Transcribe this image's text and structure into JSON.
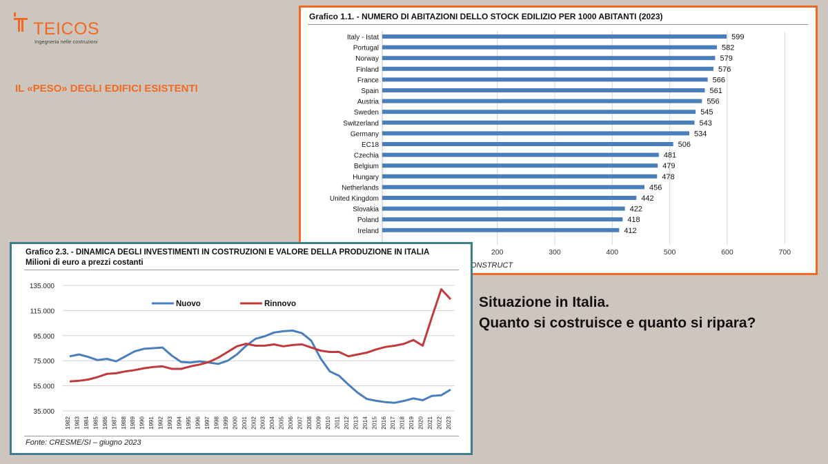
{
  "logo": {
    "name": "TEICOS",
    "tagline": "Ingegneria nelle costruzioni"
  },
  "heading": "IL «PESO» DEGLI EDIFICI ESISTENTI",
  "question": {
    "line1": "Situazione in Italia.",
    "line2": "Quanto si costruisce e quanto si ripara?"
  },
  "colors": {
    "accent": "#f06a23",
    "teal_border": "#3e7e8c",
    "bar": "#4a7ebb",
    "nuovo": "#4a7ebb",
    "rinnovo": "#c0393b"
  },
  "chart1": {
    "title": "Grafico 1.1. - NUMERO DI ABITAZIONI DELLO STOCK EDILIZIO PER 1000 ABITANTI (2023)",
    "source": "ONSTRUCT"
  },
  "chart2": {
    "title": "Grafico 2.3. - DINAMICA DEGLI INVESTIMENTI IN COSTRUZIONI E VALORE DELLA PRODUZIONE IN ITALIA",
    "subtitle": "Milioni di euro a prezzi costanti",
    "source": "Fonte: CRESME/SI – giugno 2023"
  },
  "chart_data": [
    {
      "type": "bar",
      "orientation": "horizontal",
      "title": "Grafico 1.1. - NUMERO DI ABITAZIONI DELLO STOCK EDILIZIO PER 1000 ABITANTI (2023)",
      "categories": [
        "Italy - Istat",
        "Portugal",
        "Norway",
        "Finland",
        "France",
        "Spain",
        "Austria",
        "Sweden",
        "Switzerland",
        "Germany",
        "EC18",
        "Czechia",
        "Belgium",
        "Hungary",
        "Netherlands",
        "United Kingdom",
        "Slovakia",
        "Poland",
        "Ireland"
      ],
      "values": [
        599,
        582,
        579,
        576,
        566,
        561,
        556,
        545,
        543,
        534,
        506,
        481,
        479,
        478,
        456,
        442,
        422,
        418,
        412
      ],
      "x_ticks": [
        200,
        300,
        400,
        500,
        600,
        700
      ],
      "xlim": [
        0,
        700
      ],
      "grid": true
    },
    {
      "type": "line",
      "title": "Grafico 2.3. - DINAMICA DEGLI INVESTIMENTI IN COSTRUZIONI E VALORE DELLA PRODUZIONE IN ITALIA",
      "ylabel": "Milioni di euro a prezzi costanti",
      "x": [
        1982,
        1983,
        1984,
        1985,
        1986,
        1987,
        1988,
        1989,
        1990,
        1991,
        1992,
        1993,
        1994,
        1995,
        1996,
        1997,
        1998,
        1999,
        2000,
        2001,
        2002,
        2003,
        2004,
        2005,
        2006,
        2007,
        2008,
        2009,
        2010,
        2011,
        2012,
        2013,
        2014,
        2015,
        2016,
        2017,
        2018,
        2019,
        2020,
        2021,
        2022,
        2023
      ],
      "y_ticks": [
        "35.000",
        "55.000",
        "75.000",
        "95.000",
        "115.000",
        "135.000"
      ],
      "ylim": [
        35000,
        135000
      ],
      "legend": "top-left",
      "series": [
        {
          "name": "Nuovo",
          "color": "#4a7ebb",
          "values": [
            78500,
            80000,
            78000,
            75500,
            76500,
            74500,
            78500,
            82500,
            84500,
            85000,
            85500,
            79000,
            74000,
            73500,
            74500,
            73500,
            72500,
            75000,
            80000,
            87000,
            92500,
            94500,
            97500,
            98500,
            99000,
            97000,
            91000,
            77000,
            66500,
            63000,
            56000,
            49500,
            44500,
            43000,
            42000,
            41500,
            43000,
            45000,
            43500,
            47000,
            47500,
            52000
          ]
        },
        {
          "name": "Rinnovo",
          "color": "#c0393b",
          "values": [
            58500,
            59000,
            60000,
            62000,
            64500,
            65000,
            66500,
            67500,
            69000,
            70000,
            70500,
            68500,
            68500,
            70500,
            72000,
            74000,
            77500,
            82000,
            86500,
            88500,
            87000,
            87000,
            88000,
            86500,
            87500,
            88000,
            85500,
            83000,
            82000,
            82000,
            78500,
            80000,
            81500,
            84000,
            86000,
            87000,
            88500,
            91500,
            87000,
            110000,
            132000,
            124000
          ]
        }
      ]
    }
  ]
}
